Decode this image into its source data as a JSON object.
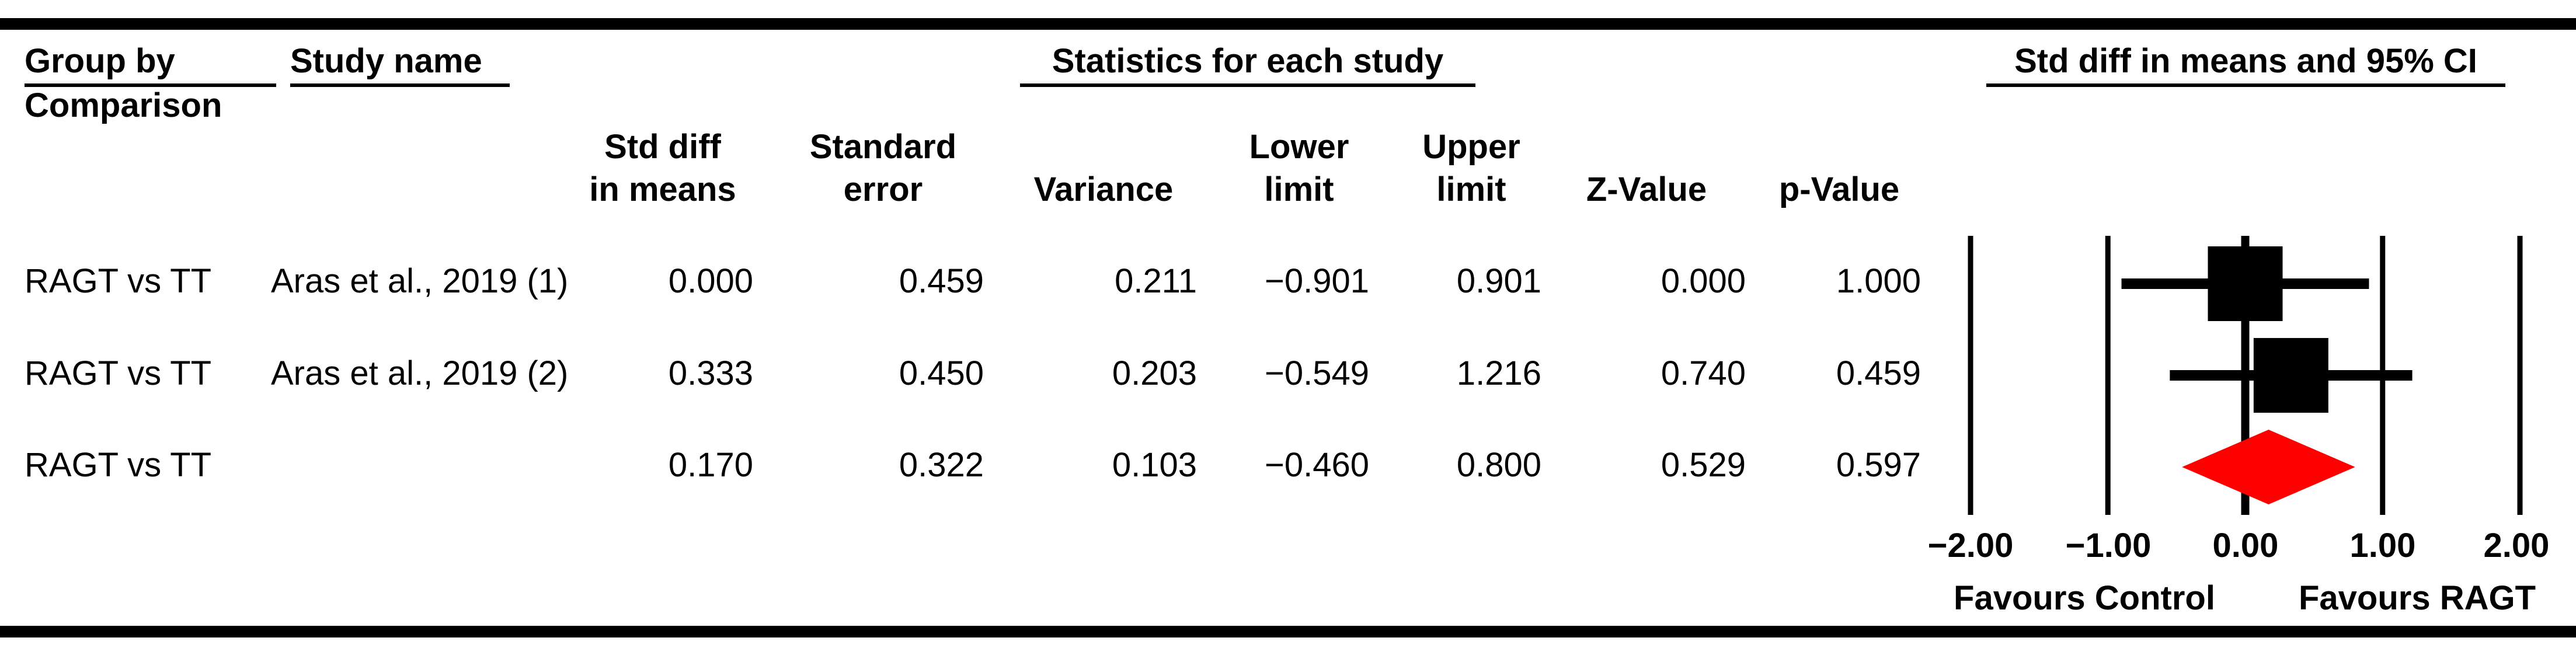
{
  "header": {
    "group_by_line1": "Group by",
    "group_by_line2": "Comparison",
    "study_name": "Study name",
    "stats_title": "Statistics for each study",
    "plot_title": "Std diff in means and 95% CI"
  },
  "columns": [
    {
      "line1": "Std diff",
      "line2": "in means"
    },
    {
      "line1": "Standard",
      "line2": "error"
    },
    {
      "line1": "",
      "line2": "Variance"
    },
    {
      "line1": "Lower",
      "line2": "limit"
    },
    {
      "line1": "Upper",
      "line2": "limit"
    },
    {
      "line1": "",
      "line2": "Z-Value"
    },
    {
      "line1": "",
      "line2": "p-Value"
    }
  ],
  "rows": [
    {
      "group": "RAGT vs TT",
      "study": "Aras et al., 2019 (1)",
      "std_diff": "0.000",
      "std_err": "0.459",
      "variance": "0.211",
      "lower": "−0.901",
      "upper": "0.901",
      "z": "0.000",
      "p": "1.000"
    },
    {
      "group": "RAGT vs TT",
      "study": "Aras et al., 2019 (2)",
      "std_diff": "0.333",
      "std_err": "0.450",
      "variance": "0.203",
      "lower": "−0.549",
      "upper": "1.216",
      "z": "0.740",
      "p": "0.459"
    },
    {
      "group": "RAGT vs TT",
      "study": "",
      "std_diff": "0.170",
      "std_err": "0.322",
      "variance": "0.103",
      "lower": "−0.460",
      "upper": "0.800",
      "z": "0.529",
      "p": "0.597"
    }
  ],
  "chart_data": {
    "type": "forest",
    "title": "Std diff in means and 95% CI",
    "xlim": [
      -2,
      2
    ],
    "ticks": [
      -2,
      -1,
      0,
      1,
      2
    ],
    "tick_labels": [
      "−2.00",
      "−1.00",
      "0.00",
      "1.00",
      "2.00"
    ],
    "zero_line": 0,
    "favours_left": "Favours Control",
    "favours_right": "Favours RAGT",
    "grid": true,
    "legend_position": "none",
    "studies": [
      {
        "label": "Aras et al., 2019 (1)",
        "mean": 0.0,
        "lower": -0.901,
        "upper": 0.901,
        "marker": "square",
        "color": "#000000"
      },
      {
        "label": "Aras et al., 2019 (2)",
        "mean": 0.333,
        "lower": -0.549,
        "upper": 1.216,
        "marker": "square",
        "color": "#000000"
      }
    ],
    "summary": {
      "group": "RAGT vs TT",
      "mean": 0.17,
      "lower": -0.46,
      "upper": 0.8,
      "marker": "diamond",
      "color": "#FF0000"
    }
  },
  "colors": {
    "text": "#000000",
    "rule": "#000000",
    "summary_diamond": "#FF0000",
    "study_marker": "#000000"
  }
}
